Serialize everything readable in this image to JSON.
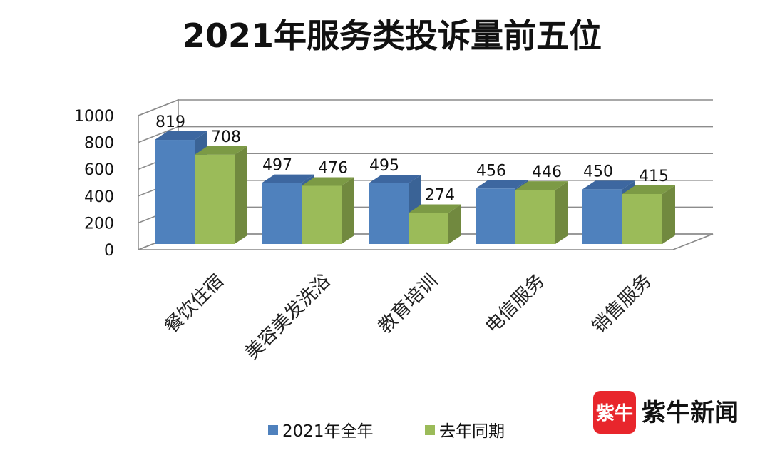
{
  "chart_data": {
    "type": "bar",
    "title": "2021年服务类投诉量前五位",
    "categories": [
      "餐饮住宿",
      "美容美发洗浴",
      "教育培训",
      "电信服务",
      "销售服务"
    ],
    "series": [
      {
        "name": "2021年全年",
        "values": [
          819,
          497,
          495,
          456,
          450
        ],
        "color": "#4f81bd",
        "side_color": "#3a6396",
        "top_color": "#3d67a0"
      },
      {
        "name": "去年同期",
        "values": [
          708,
          476,
          274,
          446,
          415
        ],
        "color": "#9bbb59",
        "side_color": "#71893f",
        "top_color": "#7c9a45"
      }
    ],
    "y_ticks": [
      "0",
      "200",
      "400",
      "600",
      "800",
      "1000"
    ],
    "ylim": [
      0,
      1000
    ],
    "grid": true,
    "legend_position": "bottom",
    "three_d": true
  },
  "watermark": {
    "mark_text": "紫牛",
    "brand_text": "紫牛新闻",
    "mark_color": "#e8262c"
  }
}
